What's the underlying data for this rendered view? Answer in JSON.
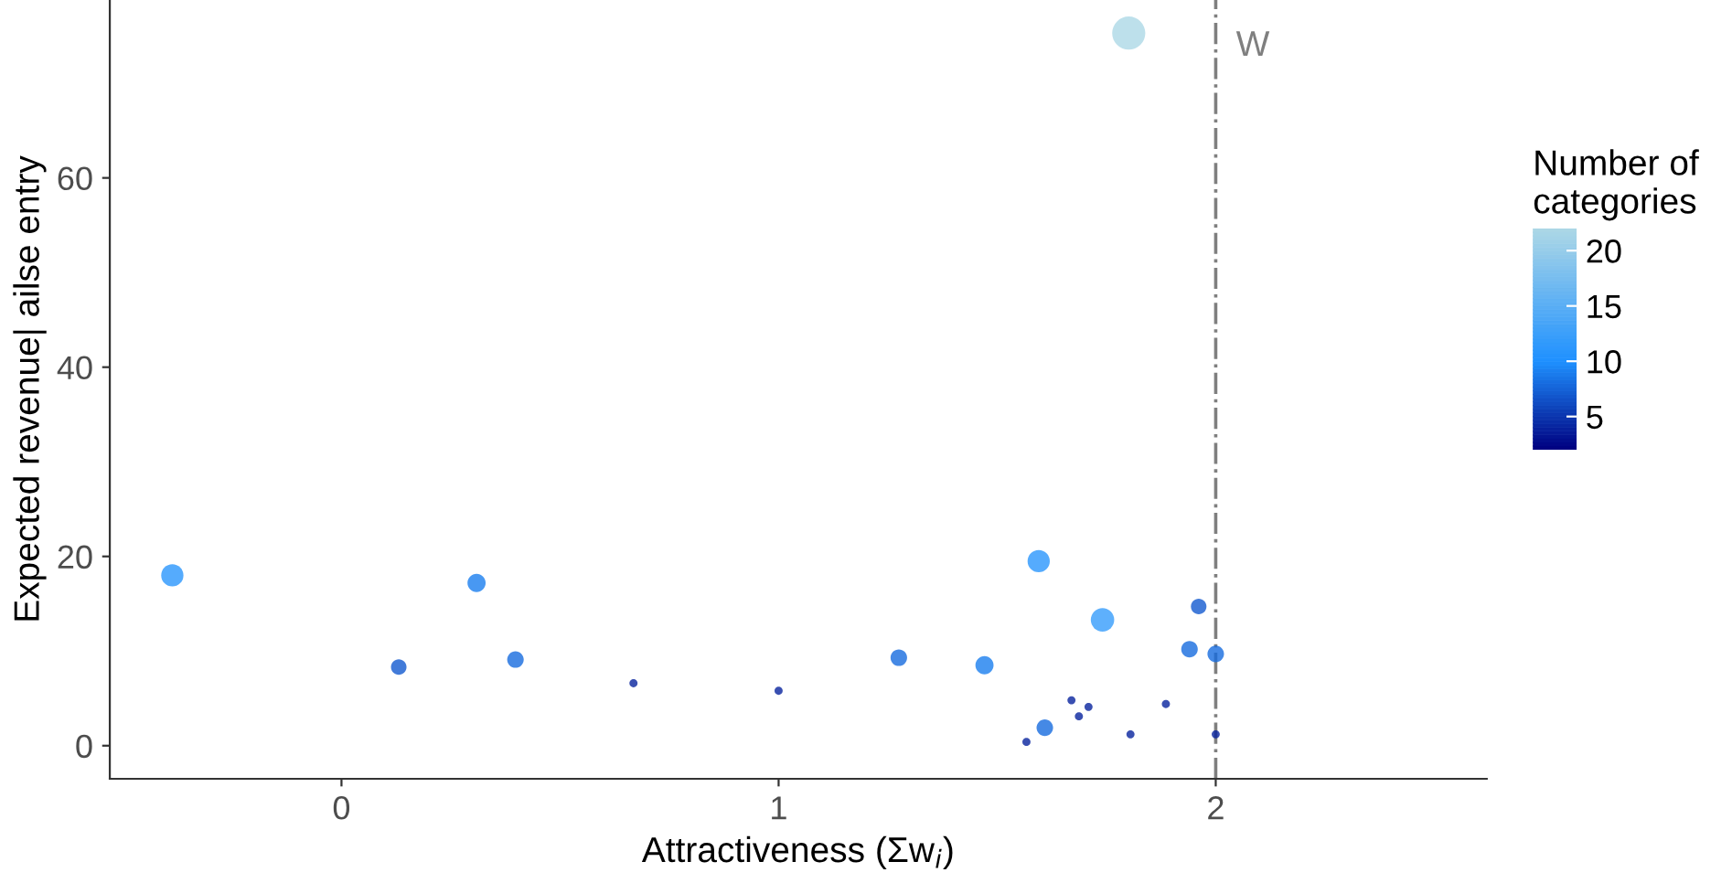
{
  "chart_data": {
    "type": "bubble",
    "xlabel": "Attractiveness (Σw$_{i}$)",
    "ylabel": "Expected revenue| ailse entry",
    "clabel": "Number of\ncategories",
    "x": [
      -0.387,
      0.131,
      0.309,
      0.398,
      0.668,
      1.0,
      1.275,
      1.471,
      1.567,
      1.595,
      1.609,
      1.67,
      1.687,
      1.709,
      1.741,
      1.805,
      1.886,
      1.94,
      1.961,
      2.0,
      2.0,
      1.801
    ],
    "values": [
      18.0,
      8.3,
      17.2,
      9.1,
      6.6,
      5.8,
      9.3,
      8.5,
      0.4,
      19.5,
      1.9,
      4.8,
      3.1,
      4.1,
      13.3,
      1.2,
      4.4,
      10.2,
      14.7,
      9.7,
      1.2,
      75.3
    ],
    "cvalues": [
      11,
      7,
      9,
      8,
      4,
      4,
      8,
      9,
      4,
      11,
      8,
      4,
      4,
      4,
      12,
      4,
      4,
      8,
      7,
      8,
      4,
      22
    ],
    "sizes": [
      0.45,
      0.22,
      0.3,
      0.25,
      0.06,
      0.06,
      0.25,
      0.3,
      0.06,
      0.45,
      0.25,
      0.06,
      0.06,
      0.06,
      0.5,
      0.06,
      0.06,
      0.25,
      0.22,
      0.25,
      0.06,
      1
    ],
    "clim": [
      2,
      22
    ],
    "cticks": [
      5,
      10,
      15,
      20
    ],
    "xlim": [
      -0.53,
      2.62
    ],
    "ylim": [
      -3.5,
      78.8
    ],
    "xticks": [
      0,
      1,
      2
    ],
    "yticks": [
      0,
      20,
      40,
      60
    ],
    "grid": false,
    "ref_lines": [
      {
        "axis": "x",
        "value": 2,
        "label": "W",
        "color": "#7f7f7f",
        "line_style": "dashdot"
      }
    ]
  }
}
